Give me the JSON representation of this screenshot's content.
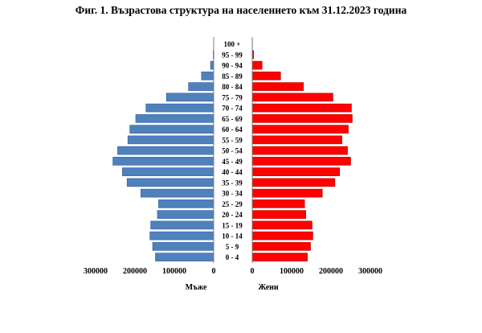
{
  "chart_data": {
    "type": "bar",
    "title": "Фиг. 1. Възрастова структура на населението към 31.12.2023 година",
    "categories": [
      "0 - 4",
      "5 - 9",
      "10 - 14",
      "15 - 19",
      "20 - 24",
      "25 - 29",
      "30 - 34",
      "35 - 39",
      "40 - 44",
      "45 - 49",
      "50 - 54",
      "55 - 59",
      "60 - 64",
      "65 - 69",
      "70 - 74",
      "75 - 79",
      "80 - 84",
      "85 - 89",
      "90 - 94",
      "95 - 99",
      "100 +"
    ],
    "series": [
      {
        "name": "Мъже",
        "color": "#4F81BD",
        "values": [
          148000,
          155000,
          162000,
          160000,
          143000,
          140000,
          185000,
          220000,
          232000,
          256000,
          244000,
          218000,
          213000,
          198000,
          172000,
          120000,
          64000,
          31000,
          8000,
          1200,
          200
        ]
      },
      {
        "name": "Жени",
        "color": "#FF0000",
        "values": [
          140000,
          148000,
          154000,
          152000,
          136000,
          133000,
          178000,
          210000,
          222000,
          250000,
          242000,
          228000,
          244000,
          254000,
          252000,
          205000,
          130000,
          72000,
          25000,
          3500,
          600
        ]
      }
    ],
    "xticks_left": [
      "300000",
      "200000",
      "100000",
      "0"
    ],
    "xticks_right": [
      "0",
      "100000",
      "200000",
      "300000"
    ],
    "xlim": [
      0,
      300000
    ],
    "grid": false
  }
}
